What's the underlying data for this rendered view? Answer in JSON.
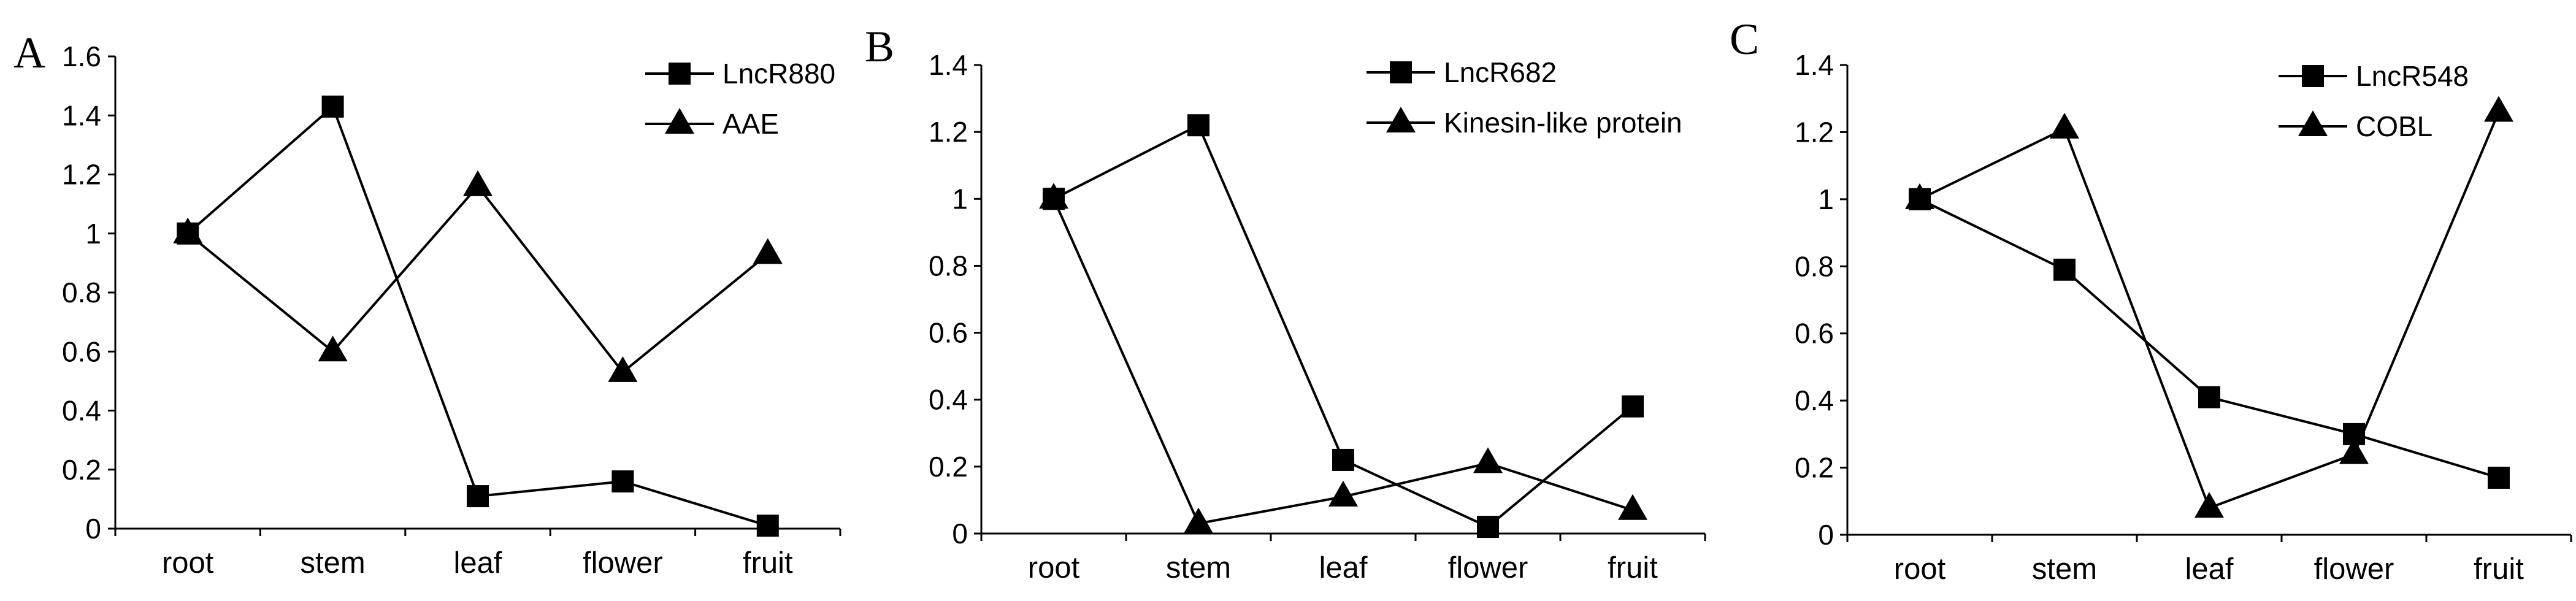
{
  "chart_data": [
    {
      "type": "line",
      "panel_label": "A",
      "categories": [
        "root",
        "stem",
        "leaf",
        "flower",
        "fruit"
      ],
      "ylim": [
        0,
        1.6
      ],
      "yticks": [
        "0",
        "0.2",
        "0.4",
        "0.6",
        "0.8",
        "1",
        "1.2",
        "1.4",
        "1.6"
      ],
      "grid": false,
      "legend_position": "top-right",
      "series": [
        {
          "name": "LncR880",
          "marker": "square",
          "values": [
            1.0,
            1.43,
            0.11,
            0.16,
            0.01
          ]
        },
        {
          "name": "AAE",
          "marker": "triangle",
          "values": [
            1.0,
            0.6,
            1.16,
            0.53,
            0.93
          ]
        }
      ]
    },
    {
      "type": "line",
      "panel_label": "B",
      "categories": [
        "root",
        "stem",
        "leaf",
        "flower",
        "fruit"
      ],
      "ylim": [
        0,
        1.4
      ],
      "yticks": [
        "0",
        "0.2",
        "0.4",
        "0.6",
        "0.8",
        "1",
        "1.2",
        "1.4"
      ],
      "grid": false,
      "legend_position": "top-right",
      "series": [
        {
          "name": "LncR682",
          "marker": "square",
          "values": [
            1.0,
            1.22,
            0.22,
            0.02,
            0.38
          ]
        },
        {
          "name": "Kinesin-like protein",
          "marker": "triangle",
          "values": [
            1.0,
            0.03,
            0.11,
            0.21,
            0.07
          ]
        }
      ]
    },
    {
      "type": "line",
      "panel_label": "C",
      "categories": [
        "root",
        "stem",
        "leaf",
        "flower",
        "fruit"
      ],
      "ylim": [
        0,
        1.4
      ],
      "yticks": [
        "0",
        "0.2",
        "0.4",
        "0.6",
        "0.8",
        "1",
        "1.2",
        "1.4"
      ],
      "grid": false,
      "legend_position": "top-right",
      "series": [
        {
          "name": "LncR548",
          "marker": "square",
          "values": [
            1.0,
            0.79,
            0.41,
            0.3,
            0.17
          ]
        },
        {
          "name": "COBL",
          "marker": "triangle",
          "values": [
            1.0,
            1.21,
            0.08,
            0.24,
            1.26
          ]
        }
      ]
    }
  ]
}
